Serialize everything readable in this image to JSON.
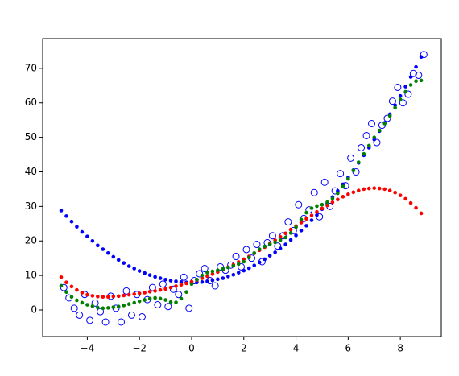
{
  "chart_data": {
    "type": "scatter",
    "xlim": [
      -5.71,
      9.57
    ],
    "ylim": [
      -7.7,
      78.6
    ],
    "xticks": [
      {
        "value": -4,
        "label": "−4"
      },
      {
        "value": -2,
        "label": "−2"
      },
      0,
      2,
      4,
      6,
      8
    ],
    "yticks": [
      0,
      10,
      20,
      30,
      40,
      50,
      60,
      70
    ],
    "series": [
      {
        "color": "#0000ff",
        "hollow": true,
        "x": [
          -4.9,
          -4.7,
          -4.5,
          -4.3,
          -4.1,
          -3.9,
          -3.7,
          -3.5,
          -3.3,
          -3.1,
          -2.9,
          -2.7,
          -2.5,
          -2.3,
          -2.1,
          -1.9,
          -1.7,
          -1.5,
          -1.3,
          -1.1,
          -0.9,
          -0.7,
          -0.5,
          -0.3,
          -0.1,
          0.1,
          0.3,
          0.5,
          0.7,
          0.9,
          1.1,
          1.3,
          1.5,
          1.7,
          1.9,
          2.1,
          2.3,
          2.5,
          2.7,
          2.9,
          3.1,
          3.3,
          3.5,
          3.7,
          3.9,
          4.1,
          4.3,
          4.5,
          4.7,
          4.9,
          5.1,
          5.3,
          5.5,
          5.7,
          5.9,
          6.1,
          6.3,
          6.5,
          6.7,
          6.9,
          7.1,
          7.3,
          7.5,
          7.7,
          7.9,
          8.1,
          8.3,
          8.5,
          8.7,
          8.9
        ],
        "values": [
          6.5,
          3.5,
          0.5,
          -1.5,
          4.5,
          -3.0,
          2.0,
          -0.5,
          -3.5,
          4.0,
          0.5,
          -3.5,
          5.5,
          -1.5,
          4.5,
          -2.0,
          3.0,
          6.5,
          1.5,
          7.5,
          1.0,
          6.0,
          4.5,
          9.5,
          0.5,
          8.5,
          10.5,
          12.0,
          8.5,
          7.0,
          12.5,
          11.5,
          13.0,
          15.5,
          12.5,
          17.5,
          15.0,
          19.0,
          14.0,
          19.5,
          21.5,
          18.5,
          21.5,
          25.5,
          23.0,
          30.5,
          26.5,
          29.0,
          34.0,
          27.0,
          37.0,
          30.0,
          34.5,
          39.5,
          36.0,
          44.0,
          40.0,
          47.0,
          50.5,
          54.0,
          48.5,
          53.5,
          55.5,
          60.5,
          64.5,
          60.0,
          62.5,
          68.5,
          68.0,
          74.0
        ]
      },
      {
        "color": "#0000ff",
        "hollow": false,
        "x": [
          -5,
          -4.8,
          -4.6,
          -4.4,
          -4.2,
          -4,
          -3.8,
          -3.6,
          -3.4,
          -3.2,
          -3,
          -2.8,
          -2.6,
          -2.4,
          -2.2,
          -2,
          -1.8,
          -1.6,
          -1.4,
          -1.2,
          -1,
          -0.8,
          -0.6,
          -0.4,
          -0.2,
          0,
          0.2,
          0.4,
          0.6,
          0.8,
          1,
          1.2,
          1.4,
          1.6,
          1.8,
          2,
          2.2,
          2.4,
          2.6,
          2.8,
          3,
          3.2,
          3.4,
          3.6,
          3.8,
          4,
          4.2,
          4.4,
          4.6,
          4.8,
          5,
          5.2,
          5.4,
          5.6,
          5.8,
          6,
          6.2,
          6.4,
          6.6,
          6.8,
          7,
          7.2,
          7.4,
          7.6,
          7.8,
          8,
          8.2,
          8.4,
          8.6,
          8.8
        ],
        "values": [
          28.8,
          27.2,
          25.6,
          24.1,
          22.6,
          21.3,
          20.0,
          18.7,
          17.6,
          16.5,
          15.4,
          14.5,
          13.6,
          12.7,
          12.0,
          11.3,
          10.7,
          10.1,
          9.6,
          9.2,
          8.8,
          8.5,
          8.3,
          8.1,
          8.0,
          8.0,
          8.0,
          8.1,
          8.3,
          8.6,
          8.9,
          9.2,
          9.7,
          10.2,
          10.8,
          11.4,
          12.1,
          12.9,
          13.8,
          14.7,
          15.7,
          16.7,
          17.8,
          19.0,
          20.3,
          21.6,
          23.0,
          24.4,
          26.0,
          27.5,
          29.2,
          30.9,
          32.7,
          34.5,
          36.4,
          38.4,
          40.5,
          42.6,
          44.8,
          47.0,
          49.4,
          51.8,
          54.2,
          56.7,
          59.3,
          62.0,
          64.7,
          67.5,
          70.4,
          73.3
        ]
      },
      {
        "color": "#ff0000",
        "hollow": false,
        "x": [
          -5,
          -4.8,
          -4.6,
          -4.4,
          -4.2,
          -4,
          -3.8,
          -3.6,
          -3.4,
          -3.2,
          -3,
          -2.8,
          -2.6,
          -2.4,
          -2.2,
          -2,
          -1.8,
          -1.6,
          -1.4,
          -1.2,
          -1,
          -0.8,
          -0.6,
          -0.4,
          -0.2,
          0,
          0.2,
          0.4,
          0.6,
          0.8,
          1,
          1.2,
          1.4,
          1.6,
          1.8,
          2,
          2.2,
          2.4,
          2.6,
          2.8,
          3,
          3.2,
          3.4,
          3.6,
          3.8,
          4,
          4.2,
          4.4,
          4.6,
          4.8,
          5,
          5.2,
          5.4,
          5.6,
          5.8,
          6,
          6.2,
          6.4,
          6.6,
          6.8,
          7,
          7.2,
          7.4,
          7.6,
          7.8,
          8,
          8.2,
          8.4,
          8.6,
          8.8
        ],
        "values": [
          9.5,
          8.0,
          6.8,
          5.8,
          5.0,
          4.4,
          4.1,
          3.9,
          3.8,
          3.8,
          3.9,
          4.0,
          4.2,
          4.4,
          4.6,
          4.8,
          5.0,
          5.3,
          5.5,
          5.8,
          6.1,
          6.5,
          6.9,
          7.3,
          7.7,
          8.2,
          8.7,
          9.2,
          9.8,
          10.4,
          11.0,
          11.7,
          12.4,
          13.1,
          13.9,
          14.7,
          15.5,
          16.4,
          17.3,
          18.2,
          19.2,
          20.2,
          21.2,
          22.2,
          23.3,
          24.3,
          25.3,
          26.4,
          27.4,
          28.4,
          29.4,
          30.3,
          31.2,
          32.0,
          32.8,
          33.5,
          34.1,
          34.6,
          35.0,
          35.2,
          35.3,
          35.2,
          35.0,
          34.6,
          34.0,
          33.2,
          32.2,
          31.0,
          29.6,
          28.0
        ]
      },
      {
        "color": "#008000",
        "hollow": false,
        "x": [
          -5,
          -4.8,
          -4.6,
          -4.4,
          -4.2,
          -4,
          -3.8,
          -3.6,
          -3.4,
          -3.2,
          -3,
          -2.8,
          -2.6,
          -2.4,
          -2.2,
          -2,
          -1.8,
          -1.6,
          -1.4,
          -1.2,
          -1,
          -0.8,
          -0.6,
          -0.4,
          -0.2,
          0,
          0.2,
          0.4,
          0.6,
          0.8,
          1,
          1.2,
          1.4,
          1.6,
          1.8,
          2,
          2.2,
          2.4,
          2.6,
          2.8,
          3,
          3.2,
          3.4,
          3.6,
          3.8,
          4,
          4.2,
          4.4,
          4.6,
          4.8,
          5,
          5.2,
          5.4,
          5.6,
          5.8,
          6,
          6.2,
          6.4,
          6.6,
          6.8,
          7,
          7.2,
          7.4,
          7.6,
          7.8,
          8,
          8.2,
          8.4,
          8.6,
          8.8
        ],
        "values": [
          7.0,
          5.2,
          3.8,
          2.8,
          2.1,
          1.5,
          1.1,
          0.7,
          0.5,
          0.6,
          0.8,
          1.0,
          1.3,
          1.7,
          2.1,
          2.5,
          2.9,
          3.3,
          3.5,
          3.3,
          2.9,
          2.3,
          2.2,
          3.3,
          5.2,
          7.5,
          8.8,
          10.0,
          10.8,
          11.2,
          11.5,
          11.9,
          12.3,
          12.8,
          13.3,
          14.0,
          15.2,
          16.5,
          17.6,
          18.4,
          19.0,
          19.6,
          20.2,
          21.0,
          22.3,
          24.0,
          26.2,
          28.2,
          29.5,
          30.1,
          30.5,
          31.2,
          32.3,
          33.8,
          35.8,
          38.0,
          40.4,
          42.8,
          45.2,
          47.6,
          50.0,
          52.0,
          54.0,
          56.2,
          58.6,
          61.0,
          63.2,
          65.2,
          66.3,
          66.5
        ]
      }
    ]
  }
}
